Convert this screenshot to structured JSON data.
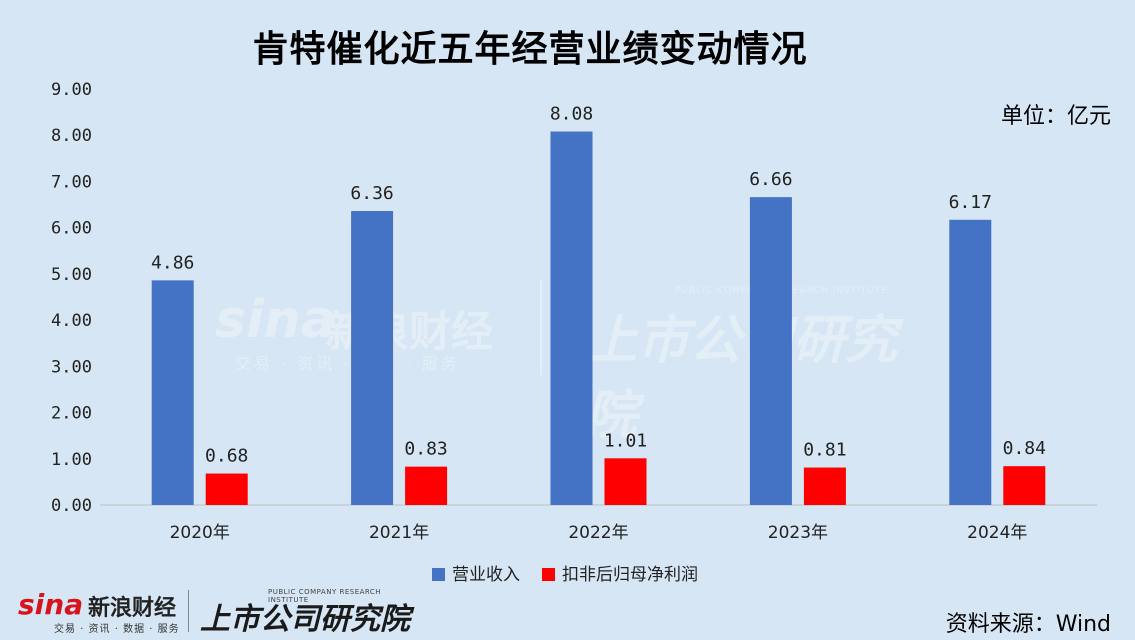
{
  "title": "肯特催化近五年经营业绩变动情况",
  "unit": "单位：亿元",
  "source": "资料来源：Wind",
  "branding": {
    "sina_icon": "sina",
    "sina_name": "新浪财经",
    "sina_sub": "交易 · 资讯 · 数据 · 服务",
    "research_name": "上市公司研究院",
    "research_sub": "PUBLIC COMPANY RESEARCH INSTITUTE"
  },
  "chart_data": {
    "type": "bar",
    "title": "肯特催化近五年经营业绩变动情况",
    "categories": [
      "2020年",
      "2021年",
      "2022年",
      "2023年",
      "2024年"
    ],
    "series": [
      {
        "name": "营业收入",
        "color": "#4472c4",
        "values": [
          4.86,
          6.36,
          8.08,
          6.66,
          6.17
        ]
      },
      {
        "name": "扣非后归母净利润",
        "color": "#ff0000",
        "values": [
          0.68,
          0.83,
          1.01,
          0.81,
          0.84
        ]
      }
    ],
    "ylim": [
      0,
      9
    ],
    "yticks": [
      "0.00",
      "1.00",
      "2.00",
      "3.00",
      "4.00",
      "5.00",
      "6.00",
      "7.00",
      "8.00",
      "9.00"
    ],
    "xlabel": "",
    "ylabel": "",
    "grid": false,
    "legend": "bottom"
  }
}
